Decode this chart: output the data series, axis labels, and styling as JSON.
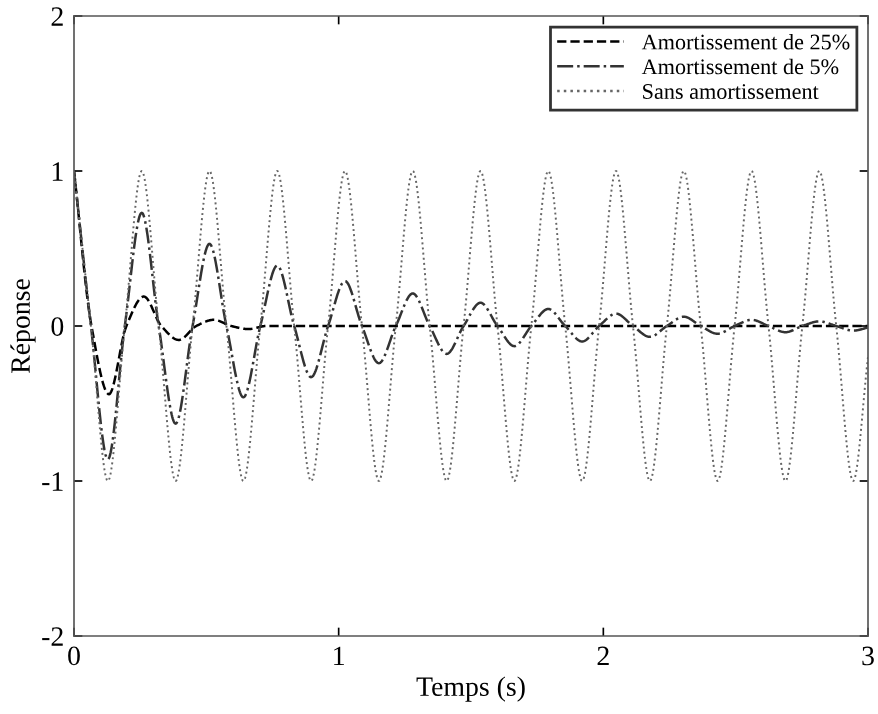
{
  "chart_data": {
    "type": "line",
    "xlabel": "Temps (s)",
    "ylabel": "Réponse",
    "xlim": [
      0,
      3
    ],
    "ylim": [
      -2,
      2
    ],
    "xticks": [
      0,
      1,
      2,
      3
    ],
    "yticks": [
      {
        "value": -2,
        "label": "-2"
      },
      {
        "value": -1,
        "label": "-1"
      },
      0,
      1,
      2
    ],
    "grid": false,
    "legend": "top right",
    "marker": "none",
    "series": [
      {
        "name": "Amortissement de 25%",
        "color": "#000000",
        "line_style": "dashed",
        "x": [
          0,
          0.066,
          0.132,
          0.198,
          0.264,
          0.33,
          0.396,
          0.462,
          0.528,
          0.594,
          0.66,
          0.726,
          3
        ],
        "values": [
          1,
          0,
          -0.44,
          0,
          0.19,
          0,
          -0.09,
          0,
          0.04,
          0,
          -0.02,
          0,
          0
        ]
      },
      {
        "name": "Amortissement de 5%",
        "color": "#333333",
        "line_style": "dashdot",
        "x": [
          0,
          0.064,
          0.128,
          0.192,
          0.256,
          0.32,
          0.384,
          0.448,
          0.512,
          0.576,
          0.64,
          0.704,
          0.768,
          0.832,
          0.896,
          0.96,
          1.024,
          1.088,
          1.152,
          1.216,
          1.28,
          1.344,
          1.408,
          1.472,
          1.536,
          1.6,
          1.664,
          1.728,
          1.792,
          1.856,
          1.92,
          1.984,
          2.048,
          2.112,
          2.176,
          2.24,
          2.304,
          2.368,
          2.432,
          2.496,
          2.56,
          2.624,
          2.688,
          2.752,
          2.816,
          2.88,
          2.944,
          3
        ],
        "values": [
          1,
          0,
          -0.86,
          0,
          0.73,
          0,
          -0.63,
          0,
          0.53,
          0,
          -0.46,
          0,
          0.39,
          0,
          -0.33,
          0,
          0.29,
          0,
          -0.24,
          0,
          0.21,
          0,
          -0.18,
          0,
          0.15,
          0,
          -0.13,
          0,
          0.11,
          0,
          -0.1,
          0,
          0.08,
          0,
          -0.07,
          0,
          0.06,
          0,
          -0.05,
          0,
          0.04,
          0,
          -0.04,
          0,
          0.03,
          0,
          -0.03,
          -0.01
        ]
      },
      {
        "name": "Sans amortissement",
        "color": "#666666",
        "line_style": "dotted",
        "x": [
          0,
          0.064,
          0.128,
          0.192,
          0.256,
          0.32,
          0.384,
          0.448,
          0.512,
          0.576,
          0.64,
          0.704,
          0.768,
          0.832,
          0.896,
          0.96,
          1.024,
          1.088,
          1.152,
          1.216,
          1.28,
          1.344,
          1.408,
          1.472,
          1.536,
          1.6,
          1.664,
          1.728,
          1.792,
          1.856,
          1.92,
          1.984,
          2.048,
          2.112,
          2.176,
          2.24,
          2.304,
          2.368,
          2.432,
          2.496,
          2.56,
          2.624,
          2.688,
          2.752,
          2.816,
          2.88,
          2.944,
          3
        ],
        "values": [
          1,
          0,
          -1,
          0,
          1,
          0,
          -1,
          0,
          1,
          0,
          -1,
          0,
          1,
          0,
          -1,
          0,
          1,
          0,
          -1,
          0,
          1,
          0,
          -1,
          0,
          1,
          0,
          -1,
          0,
          1,
          0,
          -1,
          0,
          1,
          0,
          -1,
          0,
          1,
          0,
          -1,
          0,
          1,
          0,
          -1,
          0,
          1,
          0,
          -1,
          -0.2
        ]
      }
    ]
  }
}
